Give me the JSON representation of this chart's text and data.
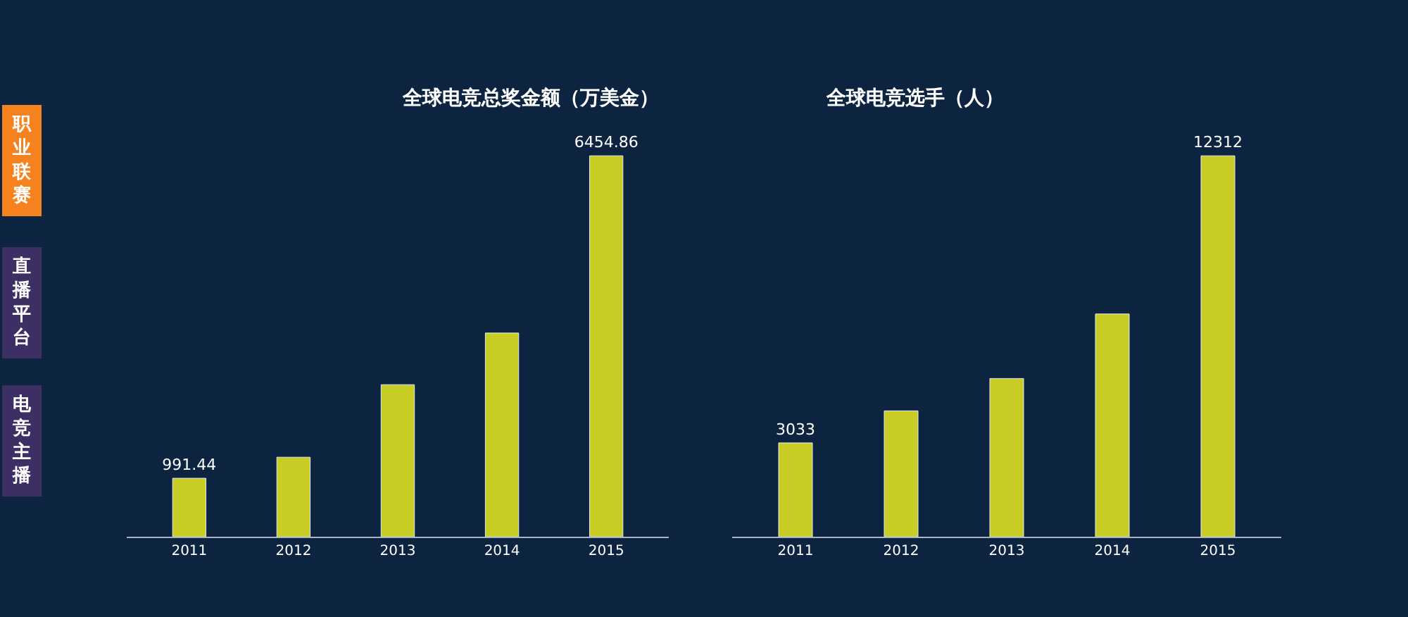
{
  "chart_data": [
    {
      "type": "bar",
      "title": "全球电竞总奖金额（万美金）",
      "categories": [
        "2011",
        "2012",
        "2013",
        "2014",
        "2015"
      ],
      "values": [
        991.44,
        1348,
        2577,
        3452,
        6454.86
      ],
      "value_labels": [
        "991.44",
        null,
        null,
        null,
        "6454.86"
      ],
      "color": "#c8cd26",
      "tick_labels": "x",
      "annotations": [
        "职业联赛",
        "直播平台",
        "电竞主播"
      ]
    },
    {
      "type": "bar",
      "title": "全球电竞选手（人）",
      "categories": [
        "2011",
        "2012",
        "2013",
        "2014",
        "2015"
      ],
      "values": [
        3033,
        4070,
        5115,
        7200,
        12312
      ],
      "value_labels": [
        "3033",
        null,
        null,
        null,
        "12312"
      ],
      "color": "#c8cd26",
      "tick_labels": "x"
    }
  ]
}
